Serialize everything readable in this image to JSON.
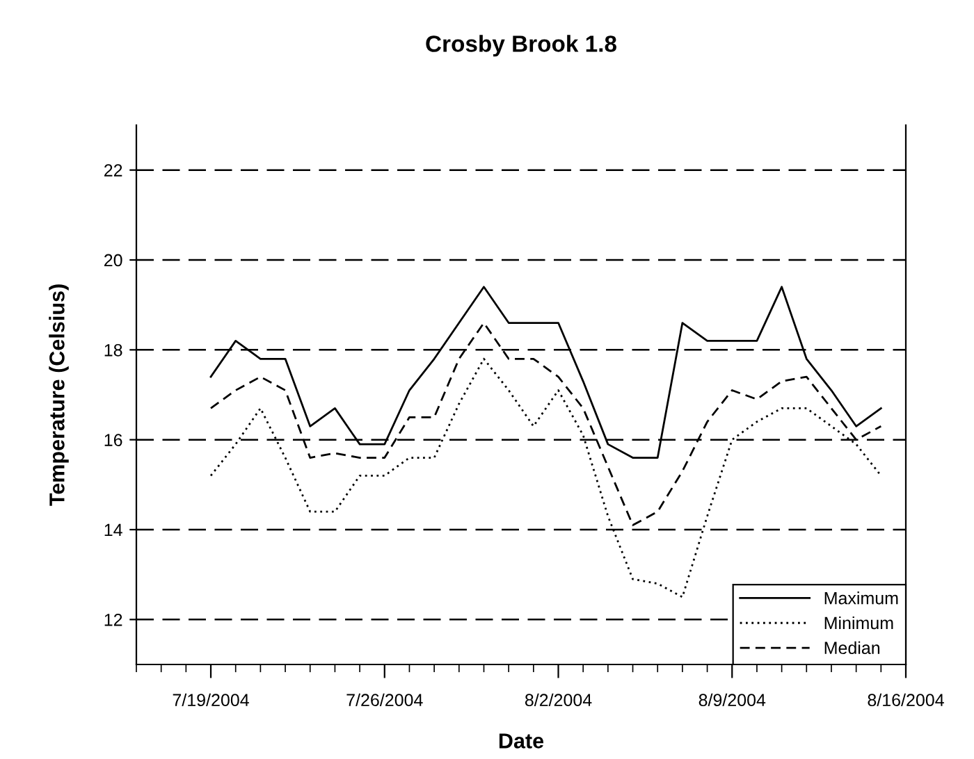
{
  "chart_data": {
    "type": "line",
    "title": "Crosby Brook 1.8",
    "xlabel": "Date",
    "ylabel": "Temperature (Celsius)",
    "x": [
      "2004-07-19",
      "2004-07-20",
      "2004-07-21",
      "2004-07-22",
      "2004-07-23",
      "2004-07-24",
      "2004-07-25",
      "2004-07-26",
      "2004-07-27",
      "2004-07-28",
      "2004-07-29",
      "2004-07-30",
      "2004-07-31",
      "2004-08-01",
      "2004-08-02",
      "2004-08-03",
      "2004-08-04",
      "2004-08-05",
      "2004-08-06",
      "2004-08-07",
      "2004-08-08",
      "2004-08-09",
      "2004-08-10",
      "2004-08-11",
      "2004-08-12",
      "2004-08-13",
      "2004-08-14",
      "2004-08-15"
    ],
    "series": [
      {
        "name": "Maximum",
        "color": "#000000",
        "line_style": "solid",
        "values": [
          17.4,
          18.2,
          17.8,
          17.8,
          16.3,
          16.7,
          15.9,
          15.9,
          17.1,
          17.8,
          18.6,
          19.4,
          18.6,
          18.6,
          18.6,
          17.3,
          15.9,
          15.6,
          15.6,
          18.6,
          18.2,
          18.2,
          18.2,
          19.4,
          17.8,
          17.1,
          16.3,
          16.7
        ]
      },
      {
        "name": "Minimum",
        "color": "#000000",
        "line_style": "dotted",
        "values": [
          15.2,
          15.9,
          16.7,
          15.6,
          14.4,
          14.4,
          15.2,
          15.2,
          15.6,
          15.6,
          16.8,
          17.8,
          17.1,
          16.3,
          17.1,
          16.1,
          14.3,
          12.9,
          12.8,
          12.5,
          14.3,
          16.0,
          16.4,
          16.7,
          16.7,
          16.3,
          15.9,
          15.2
        ]
      },
      {
        "name": "Median",
        "color": "#000000",
        "line_style": "dashed",
        "values": [
          16.7,
          17.1,
          17.4,
          17.1,
          15.6,
          15.7,
          15.6,
          15.6,
          16.5,
          16.5,
          17.8,
          18.6,
          17.8,
          17.8,
          17.4,
          16.7,
          15.4,
          14.1,
          14.4,
          15.3,
          16.4,
          17.1,
          16.9,
          17.3,
          17.4,
          16.7,
          16.0,
          16.3
        ]
      }
    ],
    "xlim": [
      "2004-07-16",
      "2004-08-16"
    ],
    "xticks": [
      {
        "value": "2004-07-19",
        "label": "7/19/2004"
      },
      {
        "value": "2004-07-26",
        "label": "7/26/2004"
      },
      {
        "value": "2004-08-02",
        "label": "8/2/2004"
      },
      {
        "value": "2004-08-09",
        "label": "8/9/2004"
      },
      {
        "value": "2004-08-16",
        "label": "8/16/2004"
      }
    ],
    "ylim": [
      11,
      23
    ],
    "yticks": [
      12,
      14,
      16,
      18,
      20,
      22
    ],
    "grid": "y",
    "legend": "bottom right",
    "marker": "none"
  }
}
